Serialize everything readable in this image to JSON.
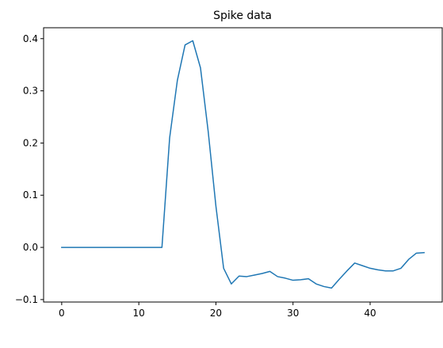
{
  "chart_data": {
    "type": "line",
    "title": "Spike data",
    "xlabel": "",
    "ylabel": "",
    "xlim": [
      -2.35,
      49.35
    ],
    "ylim": [
      -0.1047,
      0.4209
    ],
    "grid": false,
    "legend": "none",
    "colors": {
      "line": "#1f77b4",
      "axes": "#000000",
      "background": "#ffffff"
    },
    "x_ticks": [
      {
        "value": 0,
        "label": "0"
      },
      {
        "value": 10,
        "label": "10"
      },
      {
        "value": 20,
        "label": "20"
      },
      {
        "value": 30,
        "label": "30"
      },
      {
        "value": 40,
        "label": "40"
      }
    ],
    "y_ticks": [
      {
        "value": -0.1,
        "label": "−0.1"
      },
      {
        "value": 0.0,
        "label": "0.0"
      },
      {
        "value": 0.1,
        "label": "0.1"
      },
      {
        "value": 0.2,
        "label": "0.2"
      },
      {
        "value": 0.3,
        "label": "0.3"
      },
      {
        "value": 0.4,
        "label": "0.4"
      }
    ],
    "series": [
      {
        "x": [
          0,
          1,
          2,
          3,
          4,
          5,
          6,
          7,
          8,
          9,
          10,
          11,
          12,
          13,
          14,
          15,
          16,
          17,
          18,
          19,
          20,
          21,
          22,
          23,
          24,
          25,
          26,
          27,
          28,
          29,
          30,
          31,
          32,
          33,
          34,
          35,
          36,
          37,
          38,
          39,
          40,
          41,
          42,
          43,
          44,
          45,
          46,
          47
        ],
        "values": [
          0,
          0,
          0,
          0,
          0,
          0,
          0,
          0,
          0,
          0,
          0,
          0,
          0,
          0,
          0.21,
          0.32,
          0.388,
          0.396,
          0.344,
          0.222,
          0.079,
          -0.04,
          -0.07,
          -0.055,
          -0.056,
          -0.053,
          -0.05,
          -0.046,
          -0.056,
          -0.059,
          -0.063,
          -0.062,
          -0.06,
          -0.07,
          -0.075,
          -0.078,
          -0.061,
          -0.045,
          -0.03,
          -0.035,
          -0.04,
          -0.043,
          -0.045,
          -0.045,
          -0.04,
          -0.023,
          -0.011,
          -0.01
        ]
      }
    ]
  }
}
